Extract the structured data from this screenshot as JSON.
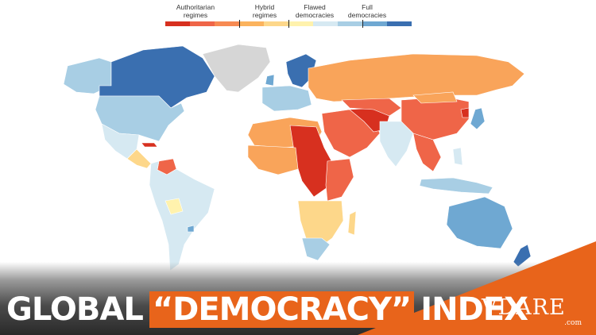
{
  "legend": {
    "authoritarian": "Authoritarian\nregimes",
    "hybrid": "Hybrid\nregimes",
    "flawed": "Flawed\ndemocracies",
    "full": "Full\ndemocracies",
    "colors": [
      "#d7301f",
      "#ef6548",
      "#f78a52",
      "#fbb35e",
      "#fdd78a",
      "#fff2ad",
      "#d6e9f2",
      "#a8cee4",
      "#6fa8d2",
      "#3a6fb0"
    ]
  },
  "map": {
    "colors": {
      "authoritarian_dark": "#d7301f",
      "authoritarian": "#ef6548",
      "authoritarian_light": "#f9a45a",
      "hybrid": "#fdd78a",
      "hybrid_light": "#fff2ad",
      "flawed": "#d6e9f2",
      "flawed_mid": "#a8cee4",
      "full": "#6fa8d2",
      "full_dark": "#3a6fb0",
      "no_data": "#d6d6d6",
      "ocean": "#ffffff"
    }
  },
  "title": {
    "before": "GLOBAL",
    "highlight": "“DEMOCRACY”",
    "after": "INDEX"
  },
  "brand": {
    "name": "VDARE",
    "domain": ".com",
    "accent": "#e8641b"
  }
}
